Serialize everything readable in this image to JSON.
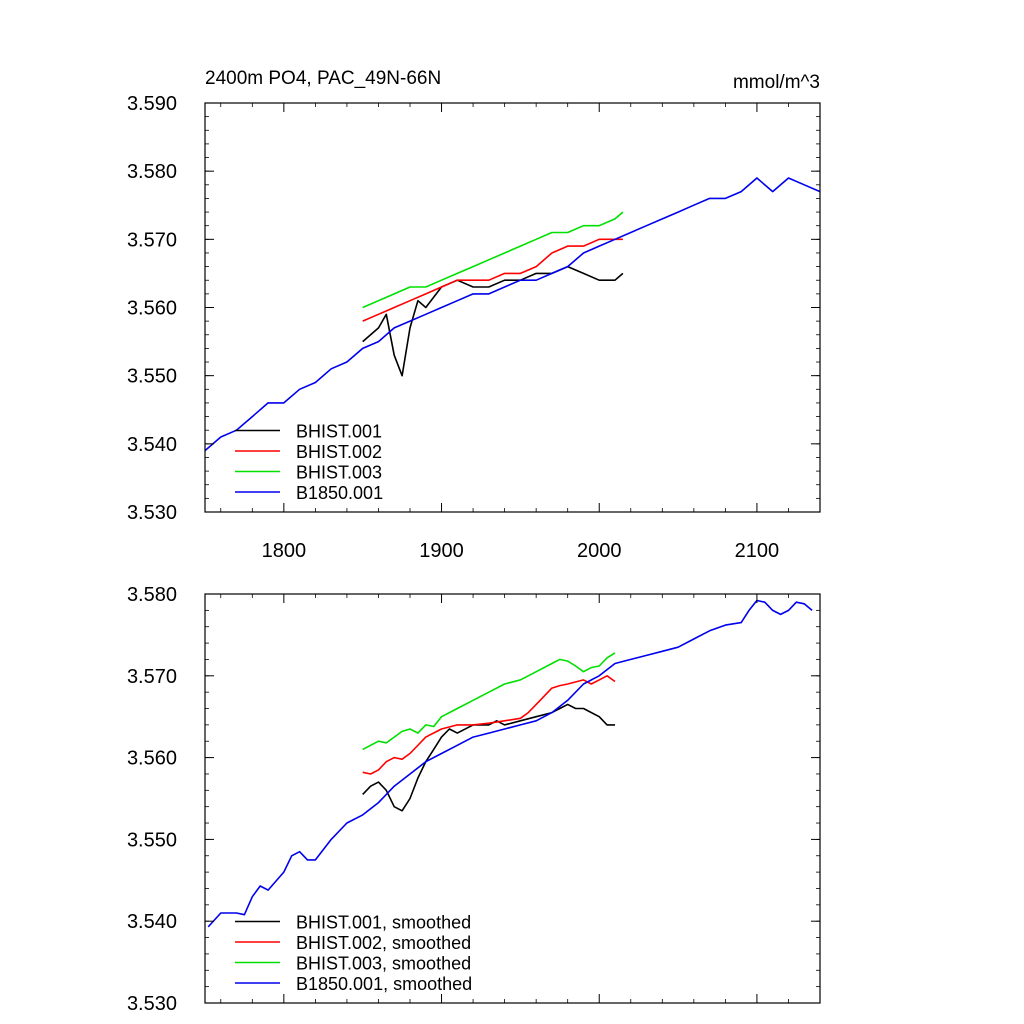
{
  "colors": {
    "BHIST.001": "#000000",
    "BHIST.002": "#ff0000",
    "BHIST.003": "#00e000",
    "B1850.001": "#0000ee"
  },
  "chart_data": [
    {
      "type": "line",
      "title": "2400m PO4, PAC_49N-66N",
      "units": "mmol/m^3",
      "xlim": [
        1750,
        2140
      ],
      "ylim": [
        3.53,
        3.59
      ],
      "x_ticks": [
        "1800",
        "1900",
        "2000",
        "2100"
      ],
      "y_ticks": [
        "3.530",
        "3.540",
        "3.550",
        "3.560",
        "3.570",
        "3.580",
        "3.590"
      ],
      "legend_position": "bottom-left",
      "series": [
        {
          "name": "BHIST.001",
          "color": "#000000",
          "points": [
            [
              1850,
              3.555
            ],
            [
              1860,
              3.557
            ],
            [
              1865,
              3.559
            ],
            [
              1870,
              3.553
            ],
            [
              1875,
              3.55
            ],
            [
              1880,
              3.557
            ],
            [
              1885,
              3.561
            ],
            [
              1890,
              3.56
            ],
            [
              1900,
              3.563
            ],
            [
              1910,
              3.564
            ],
            [
              1920,
              3.563
            ],
            [
              1930,
              3.563
            ],
            [
              1940,
              3.564
            ],
            [
              1950,
              3.564
            ],
            [
              1960,
              3.565
            ],
            [
              1970,
              3.565
            ],
            [
              1980,
              3.566
            ],
            [
              1990,
              3.565
            ],
            [
              2000,
              3.564
            ],
            [
              2010,
              3.564
            ],
            [
              2015,
              3.565
            ]
          ]
        },
        {
          "name": "BHIST.002",
          "color": "#ff0000",
          "points": [
            [
              1850,
              3.558
            ],
            [
              1860,
              3.559
            ],
            [
              1870,
              3.56
            ],
            [
              1880,
              3.561
            ],
            [
              1890,
              3.562
            ],
            [
              1900,
              3.563
            ],
            [
              1910,
              3.564
            ],
            [
              1920,
              3.564
            ],
            [
              1930,
              3.564
            ],
            [
              1940,
              3.565
            ],
            [
              1950,
              3.565
            ],
            [
              1960,
              3.566
            ],
            [
              1970,
              3.568
            ],
            [
              1980,
              3.569
            ],
            [
              1990,
              3.569
            ],
            [
              2000,
              3.57
            ],
            [
              2010,
              3.57
            ],
            [
              2015,
              3.57
            ]
          ]
        },
        {
          "name": "BHIST.003",
          "color": "#00e000",
          "points": [
            [
              1850,
              3.56
            ],
            [
              1860,
              3.561
            ],
            [
              1870,
              3.562
            ],
            [
              1880,
              3.563
            ],
            [
              1890,
              3.563
            ],
            [
              1900,
              3.564
            ],
            [
              1910,
              3.565
            ],
            [
              1920,
              3.566
            ],
            [
              1930,
              3.567
            ],
            [
              1940,
              3.568
            ],
            [
              1950,
              3.569
            ],
            [
              1960,
              3.57
            ],
            [
              1970,
              3.571
            ],
            [
              1980,
              3.571
            ],
            [
              1990,
              3.572
            ],
            [
              2000,
              3.572
            ],
            [
              2010,
              3.573
            ],
            [
              2015,
              3.574
            ]
          ]
        },
        {
          "name": "B1850.001",
          "color": "#0000ee",
          "points": [
            [
              1750,
              3.539
            ],
            [
              1760,
              3.541
            ],
            [
              1770,
              3.542
            ],
            [
              1780,
              3.544
            ],
            [
              1790,
              3.546
            ],
            [
              1800,
              3.546
            ],
            [
              1810,
              3.548
            ],
            [
              1820,
              3.549
            ],
            [
              1830,
              3.551
            ],
            [
              1840,
              3.552
            ],
            [
              1850,
              3.554
            ],
            [
              1860,
              3.555
            ],
            [
              1870,
              3.557
            ],
            [
              1880,
              3.558
            ],
            [
              1890,
              3.559
            ],
            [
              1900,
              3.56
            ],
            [
              1910,
              3.561
            ],
            [
              1920,
              3.562
            ],
            [
              1930,
              3.562
            ],
            [
              1940,
              3.563
            ],
            [
              1950,
              3.564
            ],
            [
              1960,
              3.564
            ],
            [
              1970,
              3.565
            ],
            [
              1980,
              3.566
            ],
            [
              1990,
              3.568
            ],
            [
              2000,
              3.569
            ],
            [
              2010,
              3.57
            ],
            [
              2020,
              3.571
            ],
            [
              2030,
              3.572
            ],
            [
              2040,
              3.573
            ],
            [
              2050,
              3.574
            ],
            [
              2060,
              3.575
            ],
            [
              2070,
              3.576
            ],
            [
              2080,
              3.576
            ],
            [
              2090,
              3.577
            ],
            [
              2100,
              3.579
            ],
            [
              2110,
              3.577
            ],
            [
              2120,
              3.579
            ],
            [
              2130,
              3.578
            ],
            [
              2140,
              3.577
            ]
          ]
        }
      ]
    },
    {
      "type": "line",
      "title": "",
      "xlim": [
        1750,
        2140
      ],
      "ylim": [
        3.53,
        3.58
      ],
      "y_ticks": [
        "3.530",
        "3.540",
        "3.550",
        "3.560",
        "3.570",
        "3.580"
      ],
      "legend_position": "bottom-left",
      "series": [
        {
          "name": "BHIST.001, smoothed",
          "color": "#000000",
          "points": [
            [
              1850,
              3.5555
            ],
            [
              1855,
              3.5565
            ],
            [
              1860,
              3.557
            ],
            [
              1865,
              3.556
            ],
            [
              1870,
              3.554
            ],
            [
              1875,
              3.5535
            ],
            [
              1880,
              3.555
            ],
            [
              1885,
              3.5575
            ],
            [
              1890,
              3.5595
            ],
            [
              1895,
              3.561
            ],
            [
              1900,
              3.5625
            ],
            [
              1905,
              3.5635
            ],
            [
              1910,
              3.563
            ],
            [
              1920,
              3.564
            ],
            [
              1930,
              3.564
            ],
            [
              1935,
              3.5645
            ],
            [
              1940,
              3.564
            ],
            [
              1950,
              3.5645
            ],
            [
              1960,
              3.565
            ],
            [
              1970,
              3.5655
            ],
            [
              1975,
              3.566
            ],
            [
              1980,
              3.5665
            ],
            [
              1985,
              3.566
            ],
            [
              1990,
              3.566
            ],
            [
              2000,
              3.565
            ],
            [
              2005,
              3.564
            ],
            [
              2010,
              3.564
            ]
          ]
        },
        {
          "name": "BHIST.002, smoothed",
          "color": "#ff0000",
          "points": [
            [
              1850,
              3.5582
            ],
            [
              1855,
              3.558
            ],
            [
              1860,
              3.5585
            ],
            [
              1865,
              3.5595
            ],
            [
              1870,
              3.56
            ],
            [
              1875,
              3.5598
            ],
            [
              1880,
              3.5605
            ],
            [
              1890,
              3.5625
            ],
            [
              1900,
              3.5635
            ],
            [
              1910,
              3.564
            ],
            [
              1920,
              3.564
            ],
            [
              1930,
              3.5642
            ],
            [
              1940,
              3.5645
            ],
            [
              1950,
              3.5648
            ],
            [
              1955,
              3.5655
            ],
            [
              1960,
              3.5665
            ],
            [
              1965,
              3.5675
            ],
            [
              1970,
              3.5685
            ],
            [
              1975,
              3.5688
            ],
            [
              1980,
              3.569
            ],
            [
              1990,
              3.5695
            ],
            [
              1995,
              3.569
            ],
            [
              2000,
              3.5695
            ],
            [
              2005,
              3.57
            ],
            [
              2010,
              3.5693
            ]
          ]
        },
        {
          "name": "BHIST.003, smoothed",
          "color": "#00e000",
          "points": [
            [
              1850,
              3.561
            ],
            [
              1855,
              3.5615
            ],
            [
              1860,
              3.562
            ],
            [
              1865,
              3.5618
            ],
            [
              1870,
              3.5625
            ],
            [
              1875,
              3.5632
            ],
            [
              1880,
              3.5635
            ],
            [
              1885,
              3.563
            ],
            [
              1890,
              3.564
            ],
            [
              1895,
              3.5638
            ],
            [
              1900,
              3.565
            ],
            [
              1910,
              3.566
            ],
            [
              1920,
              3.567
            ],
            [
              1930,
              3.568
            ],
            [
              1940,
              3.569
            ],
            [
              1950,
              3.5695
            ],
            [
              1960,
              3.5705
            ],
            [
              1970,
              3.5715
            ],
            [
              1975,
              3.572
            ],
            [
              1980,
              3.5718
            ],
            [
              1985,
              3.5712
            ],
            [
              1990,
              3.5705
            ],
            [
              1995,
              3.571
            ],
            [
              2000,
              3.5712
            ],
            [
              2005,
              3.5722
            ],
            [
              2010,
              3.5728
            ]
          ]
        },
        {
          "name": "B1850.001, smoothed",
          "color": "#0000ee",
          "points": [
            [
              1752,
              3.5393
            ],
            [
              1760,
              3.541
            ],
            [
              1770,
              3.541
            ],
            [
              1775,
              3.5408
            ],
            [
              1780,
              3.543
            ],
            [
              1785,
              3.5443
            ],
            [
              1790,
              3.5438
            ],
            [
              1800,
              3.546
            ],
            [
              1805,
              3.548
            ],
            [
              1810,
              3.5485
            ],
            [
              1815,
              3.5475
            ],
            [
              1820,
              3.5475
            ],
            [
              1830,
              3.55
            ],
            [
              1840,
              3.552
            ],
            [
              1850,
              3.553
            ],
            [
              1860,
              3.5545
            ],
            [
              1870,
              3.5565
            ],
            [
              1880,
              3.558
            ],
            [
              1890,
              3.5595
            ],
            [
              1900,
              3.5605
            ],
            [
              1910,
              3.5615
            ],
            [
              1920,
              3.5625
            ],
            [
              1930,
              3.563
            ],
            [
              1940,
              3.5635
            ],
            [
              1950,
              3.564
            ],
            [
              1960,
              3.5645
            ],
            [
              1970,
              3.5655
            ],
            [
              1980,
              3.567
            ],
            [
              1990,
              3.569
            ],
            [
              2000,
              3.57
            ],
            [
              2010,
              3.5715
            ],
            [
              2020,
              3.572
            ],
            [
              2030,
              3.5725
            ],
            [
              2040,
              3.573
            ],
            [
              2050,
              3.5735
            ],
            [
              2060,
              3.5745
            ],
            [
              2070,
              3.5755
            ],
            [
              2080,
              3.5762
            ],
            [
              2090,
              3.5765
            ],
            [
              2095,
              3.578
            ],
            [
              2100,
              3.5792
            ],
            [
              2105,
              3.579
            ],
            [
              2110,
              3.578
            ],
            [
              2115,
              3.5775
            ],
            [
              2120,
              3.578
            ],
            [
              2125,
              3.579
            ],
            [
              2130,
              3.5788
            ],
            [
              2135,
              3.578
            ]
          ]
        }
      ]
    }
  ]
}
